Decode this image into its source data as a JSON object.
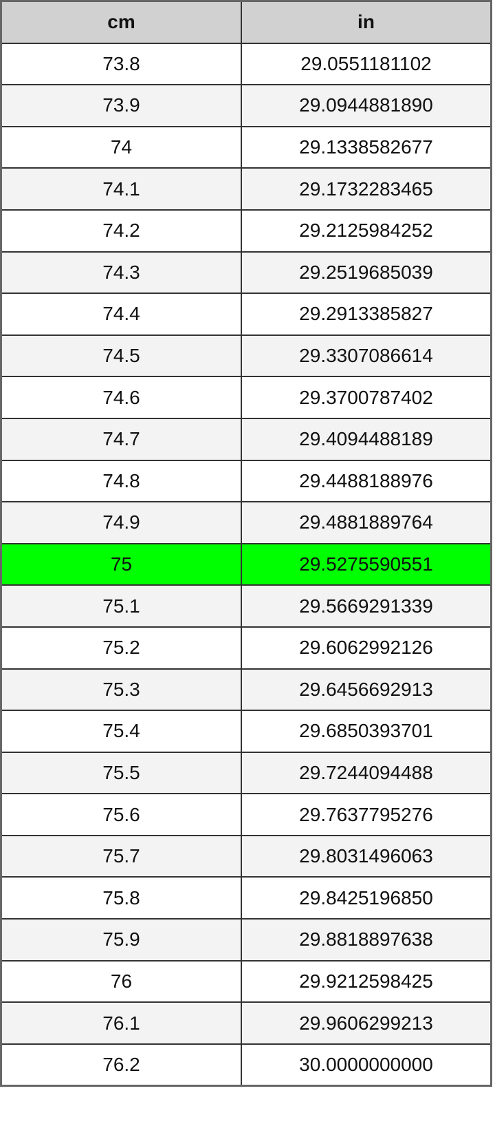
{
  "table": {
    "headers": [
      "cm",
      "in"
    ],
    "highlight_color": "#00ff00",
    "highlighted_row": "75",
    "rows": [
      [
        "73.8",
        "29.0551181102"
      ],
      [
        "73.9",
        "29.0944881890"
      ],
      [
        "74",
        "29.1338582677"
      ],
      [
        "74.1",
        "29.1732283465"
      ],
      [
        "74.2",
        "29.2125984252"
      ],
      [
        "74.3",
        "29.2519685039"
      ],
      [
        "74.4",
        "29.2913385827"
      ],
      [
        "74.5",
        "29.3307086614"
      ],
      [
        "74.6",
        "29.3700787402"
      ],
      [
        "74.7",
        "29.4094488189"
      ],
      [
        "74.8",
        "29.4488188976"
      ],
      [
        "74.9",
        "29.4881889764"
      ],
      [
        "75",
        "29.5275590551"
      ],
      [
        "75.1",
        "29.5669291339"
      ],
      [
        "75.2",
        "29.6062992126"
      ],
      [
        "75.3",
        "29.6456692913"
      ],
      [
        "75.4",
        "29.6850393701"
      ],
      [
        "75.5",
        "29.7244094488"
      ],
      [
        "75.6",
        "29.7637795276"
      ],
      [
        "75.7",
        "29.8031496063"
      ],
      [
        "75.8",
        "29.8425196850"
      ],
      [
        "75.9",
        "29.8818897638"
      ],
      [
        "76",
        "29.9212598425"
      ],
      [
        "76.1",
        "29.9606299213"
      ],
      [
        "76.2",
        "30.0000000000"
      ]
    ]
  }
}
